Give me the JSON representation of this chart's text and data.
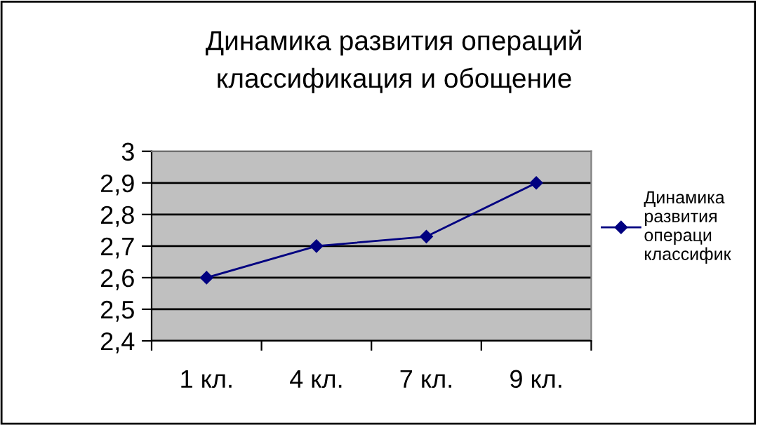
{
  "chart_data": {
    "type": "line",
    "title": "Динамика развития операций\nклассификация и обощение",
    "categories": [
      "1 кл.",
      "4 кл.",
      "7 кл.",
      "9 кл."
    ],
    "series": [
      {
        "name": "Динамика\nразвития\nопераци\nклассифик",
        "color": "#000080",
        "values": [
          2.6,
          2.7,
          2.73,
          2.9
        ]
      }
    ],
    "ylim": [
      2.4,
      3
    ],
    "yticks": [
      {
        "value": 2.4,
        "label": "2,4"
      },
      {
        "value": 2.5,
        "label": "2,5"
      },
      {
        "value": 2.6,
        "label": "2,6"
      },
      {
        "value": 2.7,
        "label": "2,7"
      },
      {
        "value": 2.8,
        "label": "2,8"
      },
      {
        "value": 2.9,
        "label": "2,9"
      },
      3
    ],
    "grid": "y",
    "legend": "right",
    "marker": "diamond",
    "line_style": "solid"
  }
}
